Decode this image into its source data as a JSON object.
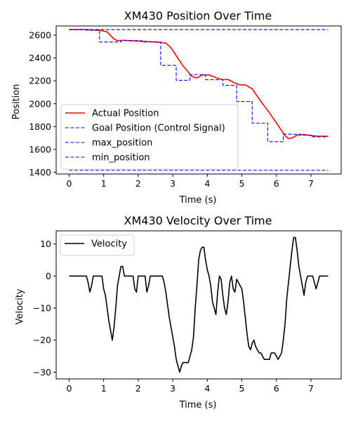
{
  "chart_data": [
    {
      "type": "line",
      "title": "XM430 Position Over Time",
      "xlabel": "Time (s)",
      "ylabel": "Position",
      "xlim": [
        -0.375,
        7.875
      ],
      "ylim": [
        1385,
        2680
      ],
      "xticks": [
        "0",
        "1",
        "2",
        "3",
        "4",
        "5",
        "6",
        "7"
      ],
      "yticks": [
        "1400",
        "1600",
        "1800",
        "2000",
        "2200",
        "2400",
        "2600"
      ],
      "legend_position": "lower-left",
      "grid": false,
      "series": [
        {
          "name": "Actual Position",
          "color": "#ff0000",
          "style": "solid",
          "points": [
            [
              0,
              2648
            ],
            [
              0.5,
              2648
            ],
            [
              0.9,
              2642
            ],
            [
              1.1,
              2628
            ],
            [
              1.3,
              2565
            ],
            [
              1.4,
              2552
            ],
            [
              1.6,
              2555
            ],
            [
              1.8,
              2550
            ],
            [
              2.2,
              2545
            ],
            [
              2.6,
              2538
            ],
            [
              2.8,
              2530
            ],
            [
              2.95,
              2490
            ],
            [
              3.1,
              2420
            ],
            [
              3.3,
              2330
            ],
            [
              3.55,
              2240
            ],
            [
              3.7,
              2225
            ],
            [
              3.85,
              2250
            ],
            [
              4.05,
              2252
            ],
            [
              4.25,
              2228
            ],
            [
              4.45,
              2210
            ],
            [
              4.6,
              2212
            ],
            [
              4.8,
              2180
            ],
            [
              4.95,
              2165
            ],
            [
              5.1,
              2165
            ],
            [
              5.3,
              2130
            ],
            [
              5.55,
              2020
            ],
            [
              5.8,
              1920
            ],
            [
              6.05,
              1810
            ],
            [
              6.25,
              1720
            ],
            [
              6.35,
              1695
            ],
            [
              6.45,
              1700
            ],
            [
              6.6,
              1725
            ],
            [
              6.8,
              1730
            ],
            [
              7.0,
              1722
            ],
            [
              7.2,
              1715
            ],
            [
              7.5,
              1715
            ]
          ]
        },
        {
          "name": "Goal Position (Control Signal)",
          "color": "#0000ff",
          "style": "dashed",
          "points": [
            [
              0,
              2648
            ],
            [
              0.5,
              2648
            ],
            [
              0.5,
              2643
            ],
            [
              0.88,
              2643
            ],
            [
              0.88,
              2540
            ],
            [
              1.5,
              2540
            ],
            [
              1.5,
              2552
            ],
            [
              2.1,
              2552
            ],
            [
              2.1,
              2540
            ],
            [
              2.65,
              2540
            ],
            [
              2.65,
              2335
            ],
            [
              3.1,
              2335
            ],
            [
              3.1,
              2205
            ],
            [
              3.5,
              2205
            ],
            [
              3.5,
              2255
            ],
            [
              3.95,
              2255
            ],
            [
              3.95,
              2210
            ],
            [
              4.45,
              2210
            ],
            [
              4.45,
              2160
            ],
            [
              4.85,
              2160
            ],
            [
              4.85,
              2020
            ],
            [
              5.3,
              2020
            ],
            [
              5.3,
              1830
            ],
            [
              5.75,
              1830
            ],
            [
              5.75,
              1668
            ],
            [
              6.2,
              1668
            ],
            [
              6.2,
              1733
            ],
            [
              6.7,
              1733
            ],
            [
              6.7,
              1725
            ],
            [
              7.0,
              1725
            ],
            [
              7.0,
              1710
            ],
            [
              7.5,
              1710
            ]
          ]
        },
        {
          "name": "max_position",
          "color": "#0000ff",
          "style": "dashed",
          "points": [
            [
              0,
              2648
            ],
            [
              7.5,
              2648
            ]
          ]
        },
        {
          "name": "min_position",
          "color": "#0000ff",
          "style": "dashed",
          "points": [
            [
              0,
              1418
            ],
            [
              7.5,
              1418
            ]
          ]
        }
      ]
    },
    {
      "type": "line",
      "title": "XM430 Velocity Over Time",
      "xlabel": "Time (s)",
      "ylabel": "Velocity",
      "xlim": [
        -0.375,
        7.875
      ],
      "ylim": [
        -32.1,
        14.1
      ],
      "xticks": [
        "0",
        "1",
        "2",
        "3",
        "4",
        "5",
        "6",
        "7"
      ],
      "yticks": [
        "10",
        "0",
        "−10",
        "−20",
        "−30"
      ],
      "legend_position": "top-left",
      "grid": false,
      "series": [
        {
          "name": "Velocity",
          "color": "#000000",
          "style": "solid",
          "points": [
            [
              0,
              0
            ],
            [
              0.5,
              0
            ],
            [
              0.55,
              -2
            ],
            [
              0.6,
              -5
            ],
            [
              0.65,
              -3
            ],
            [
              0.7,
              0
            ],
            [
              0.95,
              0
            ],
            [
              1.0,
              -4
            ],
            [
              1.05,
              -6
            ],
            [
              1.1,
              -10
            ],
            [
              1.15,
              -14
            ],
            [
              1.2,
              -17
            ],
            [
              1.25,
              -20
            ],
            [
              1.3,
              -16
            ],
            [
              1.35,
              -10
            ],
            [
              1.4,
              -3
            ],
            [
              1.45,
              0
            ],
            [
              1.5,
              3
            ],
            [
              1.55,
              3
            ],
            [
              1.6,
              0
            ],
            [
              1.85,
              0
            ],
            [
              1.9,
              -4
            ],
            [
              1.95,
              -5
            ],
            [
              2.0,
              0
            ],
            [
              2.2,
              0
            ],
            [
              2.25,
              -5
            ],
            [
              2.3,
              -3
            ],
            [
              2.35,
              0
            ],
            [
              2.7,
              0
            ],
            [
              2.75,
              -2
            ],
            [
              2.8,
              -5
            ],
            [
              2.85,
              -9
            ],
            [
              2.9,
              -13
            ],
            [
              2.95,
              -16
            ],
            [
              3.0,
              -19
            ],
            [
              3.05,
              -22
            ],
            [
              3.1,
              -26
            ],
            [
              3.15,
              -28
            ],
            [
              3.2,
              -30
            ],
            [
              3.25,
              -28
            ],
            [
              3.3,
              -27
            ],
            [
              3.35,
              -27
            ],
            [
              3.45,
              -27
            ],
            [
              3.5,
              -25
            ],
            [
              3.55,
              -23
            ],
            [
              3.6,
              -19
            ],
            [
              3.65,
              -10
            ],
            [
              3.7,
              -3
            ],
            [
              3.75,
              5
            ],
            [
              3.8,
              8
            ],
            [
              3.85,
              9
            ],
            [
              3.9,
              9
            ],
            [
              3.95,
              5
            ],
            [
              4.0,
              2
            ],
            [
              4.05,
              0
            ],
            [
              4.1,
              -3
            ],
            [
              4.15,
              -8
            ],
            [
              4.2,
              -10
            ],
            [
              4.25,
              -12
            ],
            [
              4.3,
              -5
            ],
            [
              4.35,
              0
            ],
            [
              4.4,
              -1
            ],
            [
              4.45,
              -6
            ],
            [
              4.5,
              -10
            ],
            [
              4.55,
              -12
            ],
            [
              4.6,
              -8
            ],
            [
              4.65,
              -2
            ],
            [
              4.7,
              0
            ],
            [
              4.75,
              -4
            ],
            [
              4.8,
              -5
            ],
            [
              4.85,
              -1
            ],
            [
              4.9,
              -2
            ],
            [
              4.95,
              -3
            ],
            [
              5.0,
              -4
            ],
            [
              5.05,
              -8
            ],
            [
              5.1,
              -13
            ],
            [
              5.15,
              -18
            ],
            [
              5.2,
              -22
            ],
            [
              5.25,
              -23
            ],
            [
              5.3,
              -21
            ],
            [
              5.35,
              -20
            ],
            [
              5.4,
              -22
            ],
            [
              5.45,
              -23
            ],
            [
              5.5,
              -24
            ],
            [
              5.55,
              -24
            ],
            [
              5.6,
              -25
            ],
            [
              5.65,
              -26
            ],
            [
              5.8,
              -26
            ],
            [
              5.85,
              -24
            ],
            [
              5.95,
              -24
            ],
            [
              6.0,
              -25
            ],
            [
              6.05,
              -26
            ],
            [
              6.1,
              -25
            ],
            [
              6.15,
              -24
            ],
            [
              6.2,
              -20
            ],
            [
              6.25,
              -15
            ],
            [
              6.3,
              -7
            ],
            [
              6.35,
              -2
            ],
            [
              6.4,
              3
            ],
            [
              6.45,
              8
            ],
            [
              6.5,
              12
            ],
            [
              6.55,
              12
            ],
            [
              6.6,
              8
            ],
            [
              6.65,
              3
            ],
            [
              6.7,
              0
            ],
            [
              6.75,
              -3
            ],
            [
              6.8,
              -6
            ],
            [
              6.85,
              -2
            ],
            [
              6.9,
              0
            ],
            [
              7.05,
              0
            ],
            [
              7.1,
              -2
            ],
            [
              7.15,
              -4
            ],
            [
              7.2,
              -2
            ],
            [
              7.25,
              0
            ],
            [
              7.5,
              0
            ]
          ]
        }
      ]
    }
  ]
}
